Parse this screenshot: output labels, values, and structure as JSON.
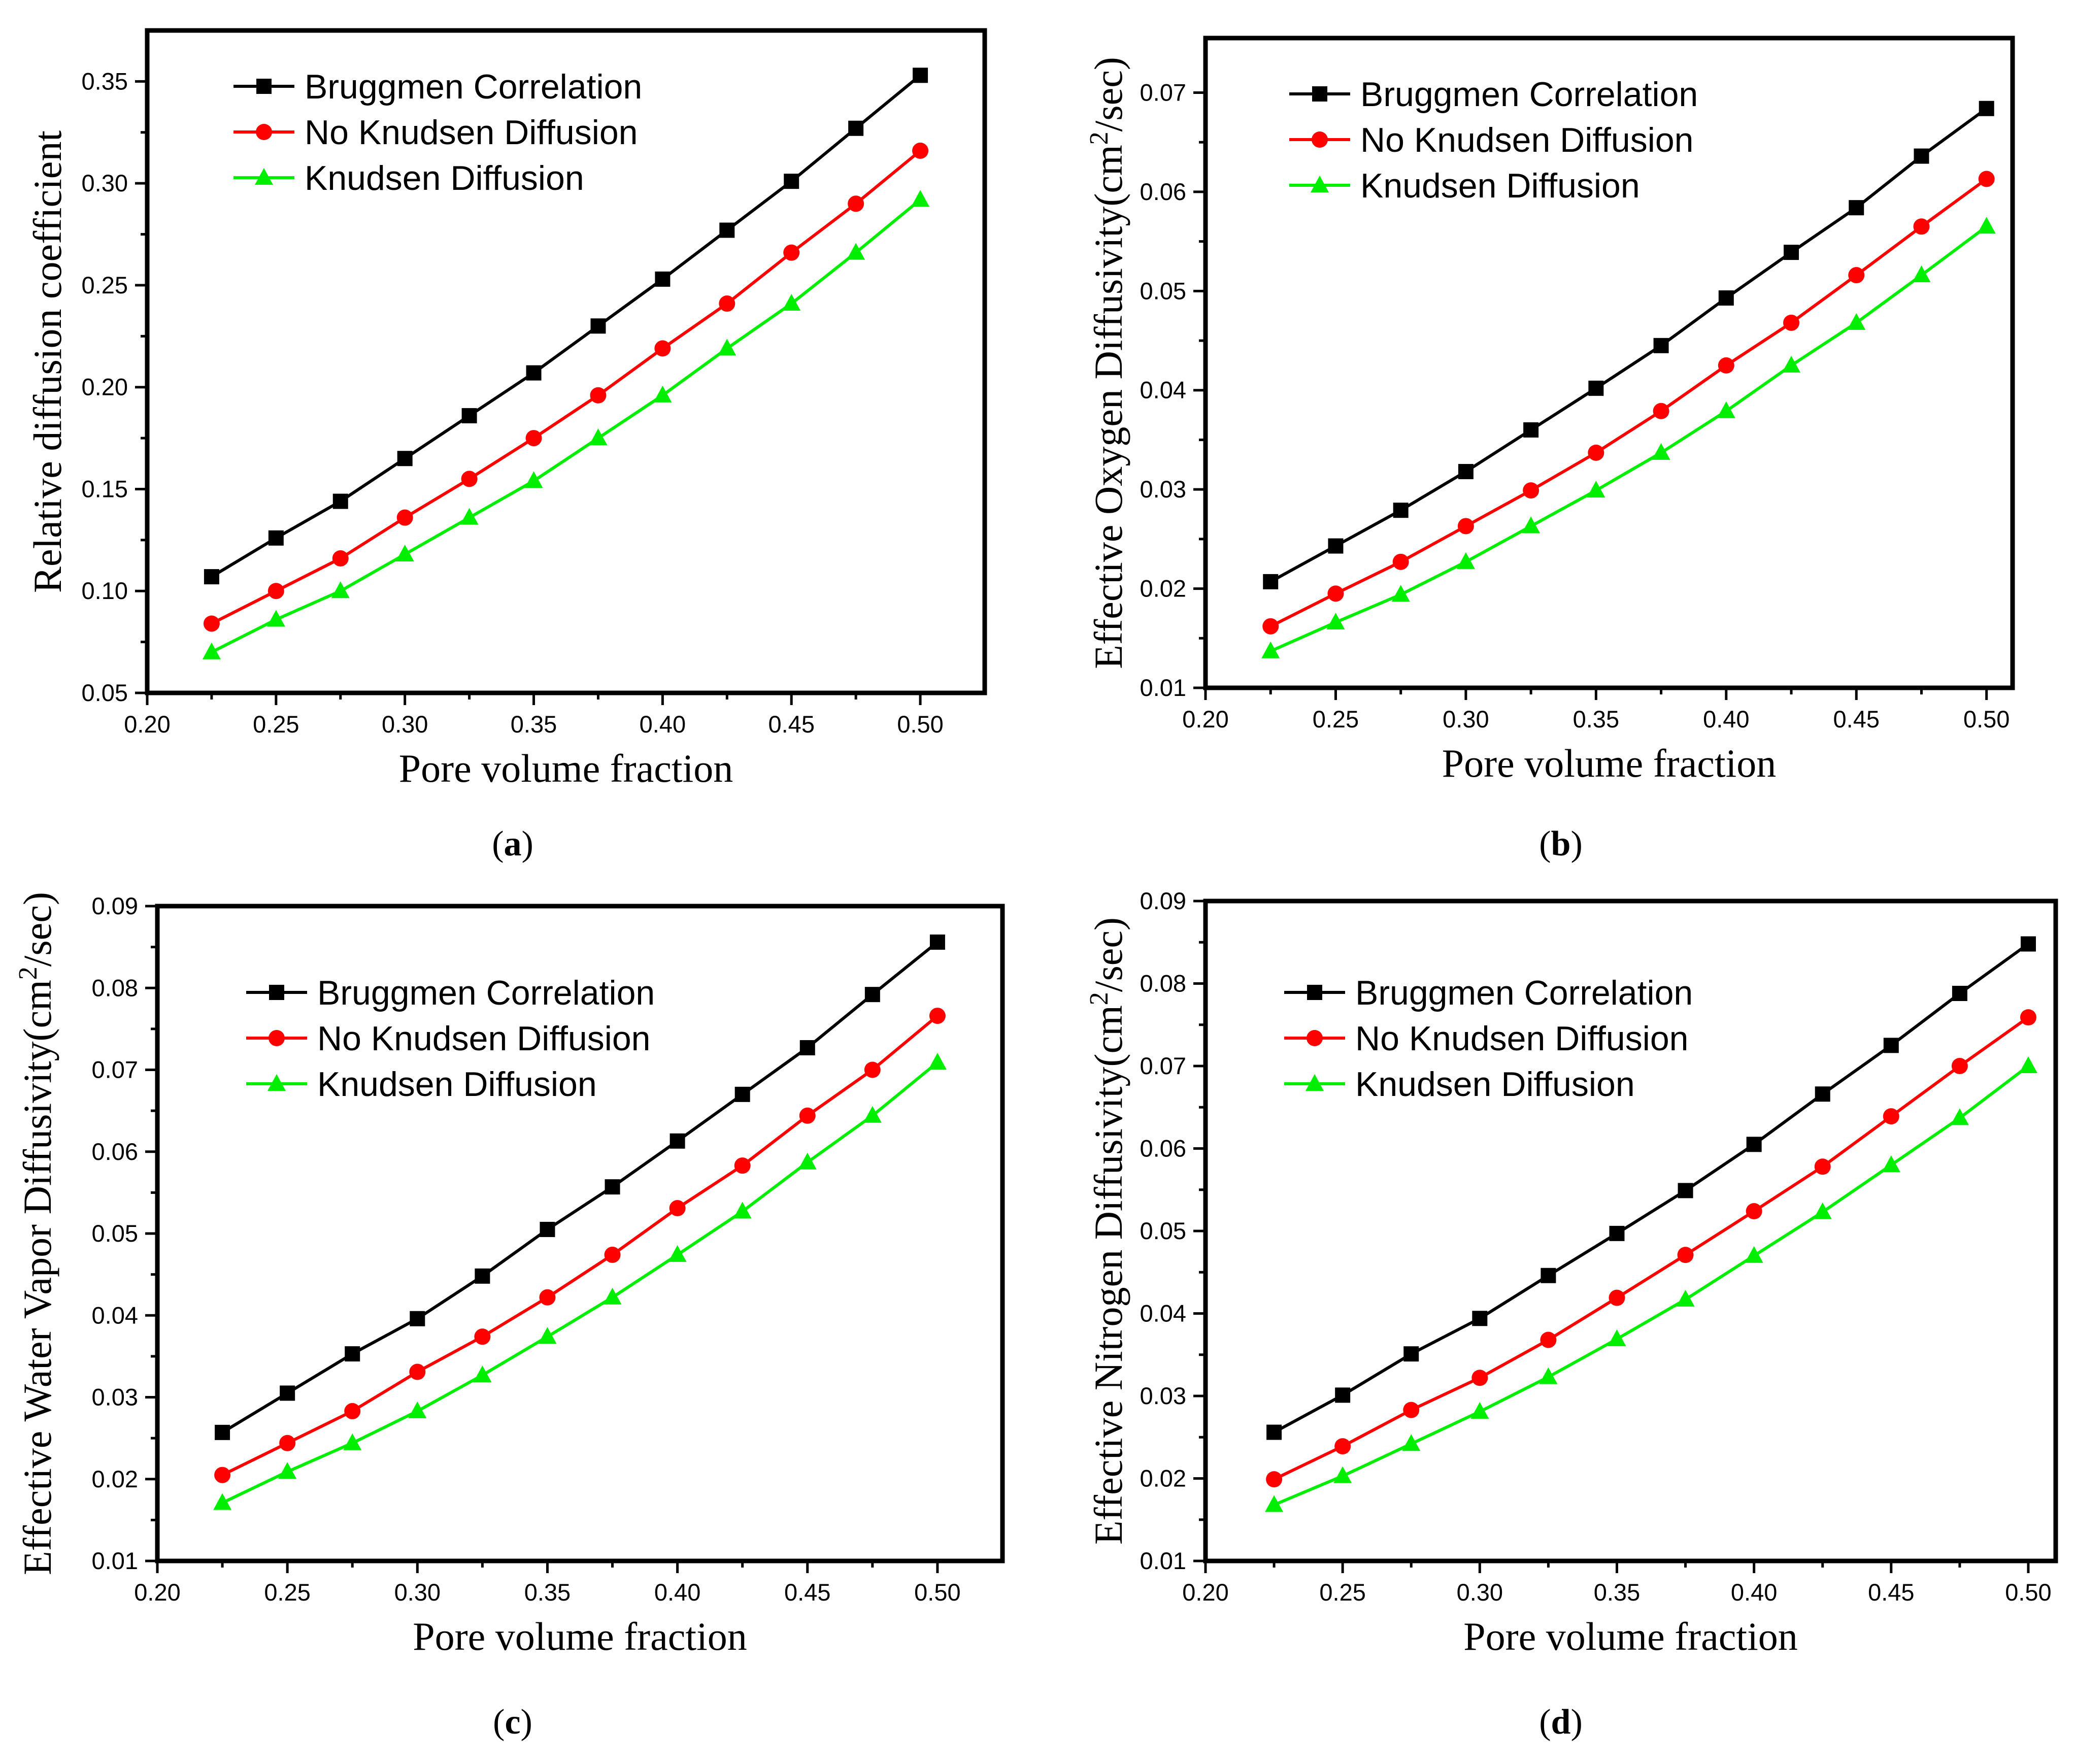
{
  "series_styles": {
    "Bruggmen Correlation": {
      "marker": "square",
      "color": "#000000"
    },
    "No Knudsen Diffusion": {
      "marker": "circle",
      "color": "#ff0000"
    },
    "Knudsen Diffusion": {
      "marker": "triangle",
      "color": "#00ee00"
    }
  },
  "chart_data": [
    {
      "id": "a",
      "type": "line",
      "panel_label": {
        "open": "(",
        "letter": "a",
        "close": ")"
      },
      "xlabel": "Pore volume fraction",
      "ylabel": "Relative diffusion coefficient",
      "ylabel_base": "",
      "ylabel_sup": "",
      "ylabel_tail": "",
      "xlim": [
        0.2,
        0.525
      ],
      "ylim": [
        0.05,
        0.375
      ],
      "xticks": [
        0.2,
        0.25,
        0.3,
        0.35,
        0.4,
        0.45,
        0.5
      ],
      "xtick_labels": [
        "0.20",
        "0.25",
        "0.30",
        "0.35",
        "0.40",
        "0.45",
        "0.50"
      ],
      "yticks": [
        0.05,
        0.1,
        0.15,
        0.2,
        0.25,
        0.3,
        0.35
      ],
      "ytick_labels": [
        "0.05",
        "0.10",
        "0.15",
        "0.20",
        "0.25",
        "0.30",
        "0.35"
      ],
      "x": [
        0.225,
        0.25,
        0.275,
        0.3,
        0.325,
        0.35,
        0.375,
        0.4,
        0.425,
        0.45,
        0.475,
        0.5
      ],
      "legend_position": "top-left",
      "series": [
        {
          "name": "Bruggmen Correlation",
          "values": [
            0.107,
            0.126,
            0.144,
            0.165,
            0.186,
            0.207,
            0.23,
            0.253,
            0.277,
            0.301,
            0.327,
            0.353
          ]
        },
        {
          "name": "No Knudsen Diffusion",
          "values": [
            0.084,
            0.1,
            0.116,
            0.136,
            0.155,
            0.175,
            0.196,
            0.219,
            0.241,
            0.266,
            0.29,
            0.316
          ]
        },
        {
          "name": "Knudsen Diffusion",
          "values": [
            0.07,
            0.086,
            0.1,
            0.118,
            0.136,
            0.154,
            0.175,
            0.196,
            0.219,
            0.241,
            0.266,
            0.292
          ]
        }
      ]
    },
    {
      "id": "b",
      "type": "line",
      "panel_label": {
        "open": "(",
        "letter": "b",
        "close": ")"
      },
      "xlabel": "Pore volume fraction",
      "ylabel": "",
      "ylabel_base": "Effective Oxygen Diffusivity(cm",
      "ylabel_sup": "2",
      "ylabel_tail": "/sec)",
      "xlim": [
        0.2,
        0.51
      ],
      "ylim": [
        0.01,
        0.0755
      ],
      "xticks": [
        0.2,
        0.25,
        0.3,
        0.35,
        0.4,
        0.45,
        0.5
      ],
      "xtick_labels": [
        "0.20",
        "0.25",
        "0.30",
        "0.35",
        "0.40",
        "0.45",
        "0.50"
      ],
      "yticks": [
        0.01,
        0.02,
        0.03,
        0.04,
        0.05,
        0.06,
        0.07
      ],
      "ytick_labels": [
        "0.01",
        "0.02",
        "0.03",
        "0.04",
        "0.05",
        "0.06",
        "0.07"
      ],
      "x": [
        0.225,
        0.25,
        0.275,
        0.3,
        0.325,
        0.35,
        0.375,
        0.4,
        0.425,
        0.45,
        0.475,
        0.5
      ],
      "legend_position": "top-left",
      "series": [
        {
          "name": "Bruggmen Correlation",
          "values": [
            0.0207,
            0.0243,
            0.0279,
            0.0318,
            0.036,
            0.0402,
            0.0445,
            0.0493,
            0.0539,
            0.0584,
            0.0636,
            0.0684
          ]
        },
        {
          "name": "No Knudsen Diffusion",
          "values": [
            0.0162,
            0.0195,
            0.0227,
            0.0263,
            0.0299,
            0.0337,
            0.0379,
            0.0425,
            0.0468,
            0.0516,
            0.0565,
            0.0613
          ]
        },
        {
          "name": "Knudsen Diffusion",
          "values": [
            0.0137,
            0.0166,
            0.0194,
            0.0227,
            0.0263,
            0.0299,
            0.0337,
            0.0379,
            0.0425,
            0.0468,
            0.0516,
            0.0565
          ]
        }
      ]
    },
    {
      "id": "c",
      "type": "line",
      "panel_label": {
        "open": "(",
        "letter": "c",
        "close": ")"
      },
      "xlabel": "Pore volume fraction",
      "ylabel": "",
      "ylabel_base": "Effective Water Vapor Diffusivity(cm",
      "ylabel_sup": "2",
      "ylabel_tail": "/sec)",
      "xlim": [
        0.2,
        0.525
      ],
      "ylim": [
        0.01,
        0.09
      ],
      "xticks": [
        0.2,
        0.25,
        0.3,
        0.35,
        0.4,
        0.45,
        0.5
      ],
      "xtick_labels": [
        "0.20",
        "0.25",
        "0.30",
        "0.35",
        "0.40",
        "0.45",
        "0.50"
      ],
      "yticks": [
        0.01,
        0.02,
        0.03,
        0.04,
        0.05,
        0.06,
        0.07,
        0.08,
        0.09
      ],
      "ytick_labels": [
        "0.01",
        "0.02",
        "0.03",
        "0.04",
        "0.05",
        "0.06",
        "0.07",
        "0.08",
        "0.09"
      ],
      "x": [
        0.225,
        0.25,
        0.275,
        0.3,
        0.325,
        0.35,
        0.375,
        0.4,
        0.425,
        0.45,
        0.475,
        0.5
      ],
      "legend_position": "top-left",
      "series": [
        {
          "name": "Bruggmen Correlation",
          "values": [
            0.0257,
            0.0305,
            0.0353,
            0.0396,
            0.0448,
            0.0505,
            0.0557,
            0.0613,
            0.067,
            0.0727,
            0.0792,
            0.0856
          ]
        },
        {
          "name": "No Knudsen Diffusion",
          "values": [
            0.0205,
            0.0244,
            0.0283,
            0.0331,
            0.0374,
            0.0422,
            0.0474,
            0.0531,
            0.0583,
            0.0644,
            0.07,
            0.0766
          ]
        },
        {
          "name": "Knudsen Diffusion",
          "values": [
            0.0171,
            0.0209,
            0.0244,
            0.0283,
            0.0327,
            0.0374,
            0.0422,
            0.0474,
            0.0527,
            0.0587,
            0.0644,
            0.0709
          ]
        }
      ]
    },
    {
      "id": "d",
      "type": "line",
      "panel_label": {
        "open": "(",
        "letter": "d",
        "close": ")"
      },
      "xlabel": "Pore volume fraction",
      "ylabel": "",
      "ylabel_base": "Effective Nitrogen Diffusivity(cm",
      "ylabel_sup": "2",
      "ylabel_tail": "/sec)",
      "xlim": [
        0.2,
        0.51
      ],
      "ylim": [
        0.01,
        0.09
      ],
      "xticks": [
        0.2,
        0.25,
        0.3,
        0.35,
        0.4,
        0.45,
        0.5
      ],
      "xtick_labels": [
        "0.20",
        "0.25",
        "0.30",
        "0.35",
        "0.40",
        "0.45",
        "0.50"
      ],
      "yticks": [
        0.01,
        0.02,
        0.03,
        0.04,
        0.05,
        0.06,
        0.07,
        0.08,
        0.09
      ],
      "ytick_labels": [
        "0.01",
        "0.02",
        "0.03",
        "0.04",
        "0.05",
        "0.06",
        "0.07",
        "0.08",
        "0.09"
      ],
      "x": [
        0.225,
        0.25,
        0.275,
        0.3,
        0.325,
        0.35,
        0.375,
        0.4,
        0.425,
        0.45,
        0.475,
        0.5
      ],
      "legend_position": "top-left",
      "series": [
        {
          "name": "Bruggmen Correlation",
          "values": [
            0.0256,
            0.0301,
            0.0351,
            0.0394,
            0.0446,
            0.0497,
            0.0549,
            0.0605,
            0.0666,
            0.0725,
            0.0788,
            0.0848
          ]
        },
        {
          "name": "No Knudsen Diffusion",
          "values": [
            0.0199,
            0.0239,
            0.0283,
            0.0322,
            0.0368,
            0.0419,
            0.0471,
            0.0524,
            0.0578,
            0.0639,
            0.07,
            0.0759
          ]
        },
        {
          "name": "Knudsen Diffusion",
          "values": [
            0.0168,
            0.0203,
            0.0242,
            0.0281,
            0.0323,
            0.0369,
            0.0417,
            0.047,
            0.0523,
            0.058,
            0.0637,
            0.07
          ]
        }
      ]
    }
  ]
}
